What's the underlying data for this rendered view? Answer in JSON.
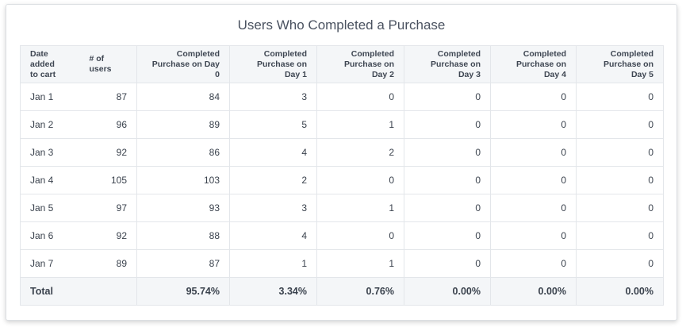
{
  "title": "Users Who Completed a Purchase",
  "columns": [
    "Date added\nto cart",
    "# of users",
    "Completed\nPurchase on Day 0",
    "Completed\nPurchase on Day 1",
    "Completed\nPurchase on Day 2",
    "Completed\nPurchase on Day 3",
    "Completed\nPurchase on Day 4",
    "Completed\nPurchase on Day 5"
  ],
  "rows": [
    [
      "Jan 1",
      "87",
      "84",
      "3",
      "0",
      "0",
      "0",
      "0"
    ],
    [
      "Jan 2",
      "96",
      "89",
      "5",
      "1",
      "0",
      "0",
      "0"
    ],
    [
      "Jan 3",
      "92",
      "86",
      "4",
      "2",
      "0",
      "0",
      "0"
    ],
    [
      "Jan 4",
      "105",
      "103",
      "2",
      "0",
      "0",
      "0",
      "0"
    ],
    [
      "Jan 5",
      "97",
      "93",
      "3",
      "1",
      "0",
      "0",
      "0"
    ],
    [
      "Jan 6",
      "92",
      "88",
      "4",
      "0",
      "0",
      "0",
      "0"
    ],
    [
      "Jan 7",
      "89",
      "87",
      "1",
      "1",
      "0",
      "0",
      "0"
    ]
  ],
  "total": [
    "Total",
    "",
    "95.74%",
    "3.34%",
    "0.76%",
    "0.00%",
    "0.00%",
    "0.00%"
  ]
}
